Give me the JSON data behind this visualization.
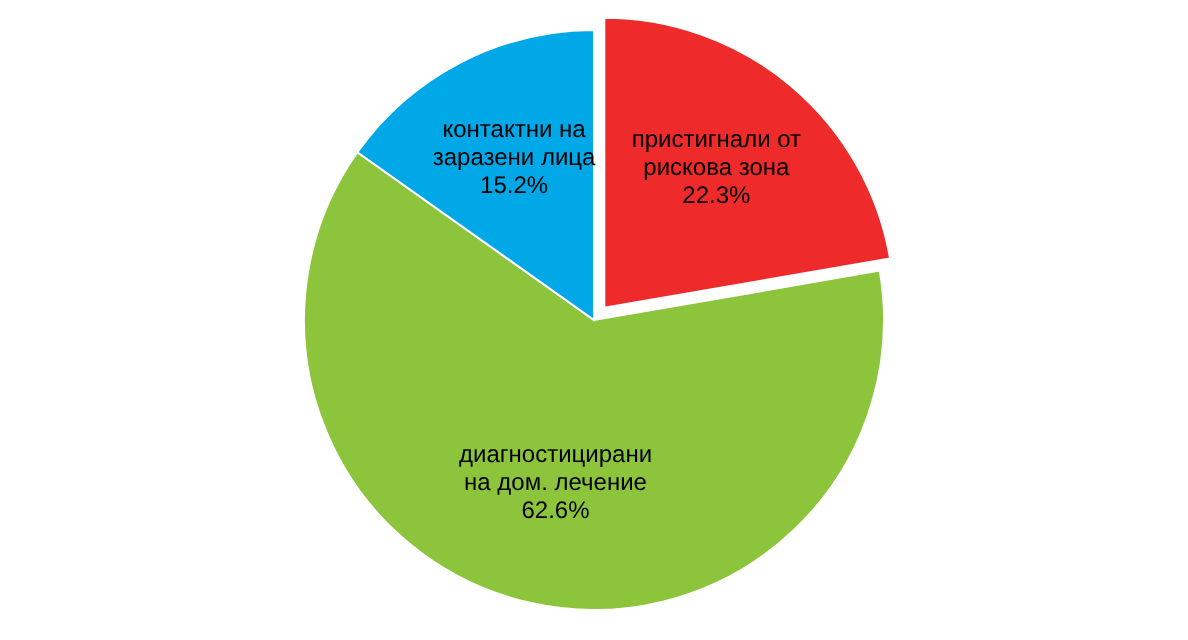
{
  "chart_data": {
    "type": "pie",
    "categories": [
      "пристигнали от рискова зона",
      "диагностицирани на дом. лечение",
      "контактни на заразени лица"
    ],
    "values": [
      22.3,
      62.6,
      15.2
    ],
    "colors": [
      "#ee2a2a",
      "#8cc43c",
      "#00a8e8"
    ],
    "value_labels": [
      "22.3%",
      "62.6%",
      "15.2%"
    ],
    "legend": false
  }
}
